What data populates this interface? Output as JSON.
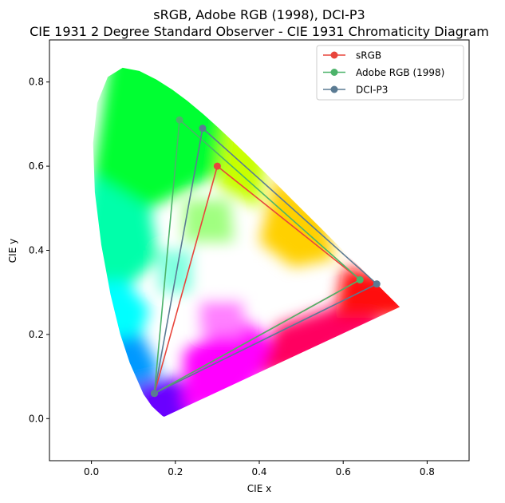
{
  "chart_data": {
    "type": "line",
    "title": "sRGB, Adobe RGB (1998), DCI-P3",
    "subtitle": "CIE 1931 2 Degree Standard Observer - CIE 1931 Chromaticity Diagram",
    "xlabel": "CIE x",
    "ylabel": "CIE y",
    "xlim": [
      -0.1,
      0.9
    ],
    "ylim": [
      -0.1,
      0.9
    ],
    "x_ticks": [
      0.0,
      0.2,
      0.4,
      0.6,
      0.8
    ],
    "y_ticks": [
      0.0,
      0.2,
      0.4,
      0.6,
      0.8
    ],
    "x_tick_labels": [
      "0.0",
      "0.2",
      "0.4",
      "0.6",
      "0.8"
    ],
    "y_tick_labels": [
      "0.0",
      "0.2",
      "0.4",
      "0.6",
      "0.8"
    ],
    "grid": false,
    "legend_position": "top-right",
    "series": [
      {
        "name": "sRGB",
        "color": "#e8453c",
        "points": [
          [
            0.64,
            0.33
          ],
          [
            0.3,
            0.6
          ],
          [
            0.15,
            0.06
          ],
          [
            0.64,
            0.33
          ]
        ]
      },
      {
        "name": "Adobe RGB (1998)",
        "color": "#4cb36a",
        "points": [
          [
            0.64,
            0.33
          ],
          [
            0.21,
            0.71
          ],
          [
            0.15,
            0.06
          ],
          [
            0.64,
            0.33
          ]
        ]
      },
      {
        "name": "DCI-P3",
        "color": "#5b7b93",
        "points": [
          [
            0.68,
            0.32
          ],
          [
            0.265,
            0.69
          ],
          [
            0.15,
            0.06
          ],
          [
            0.68,
            0.32
          ]
        ]
      }
    ],
    "spectral_locus": [
      [
        0.1741,
        0.005
      ],
      [
        0.1738,
        0.0049
      ],
      [
        0.1736,
        0.0049
      ],
      [
        0.1733,
        0.0048
      ],
      [
        0.1726,
        0.0048
      ],
      [
        0.1714,
        0.0051
      ],
      [
        0.1689,
        0.0069
      ],
      [
        0.1644,
        0.0109
      ],
      [
        0.1566,
        0.0177
      ],
      [
        0.144,
        0.0297
      ],
      [
        0.1241,
        0.0578
      ],
      [
        0.0913,
        0.1327
      ],
      [
        0.0687,
        0.2007
      ],
      [
        0.0454,
        0.295
      ],
      [
        0.0235,
        0.4127
      ],
      [
        0.0082,
        0.5384
      ],
      [
        0.0039,
        0.6548
      ],
      [
        0.0139,
        0.7502
      ],
      [
        0.0389,
        0.812
      ],
      [
        0.0743,
        0.8338
      ],
      [
        0.1142,
        0.8262
      ],
      [
        0.1547,
        0.8059
      ],
      [
        0.1929,
        0.7816
      ],
      [
        0.2296,
        0.7543
      ],
      [
        0.2658,
        0.7243
      ],
      [
        0.3016,
        0.6923
      ],
      [
        0.3373,
        0.6589
      ],
      [
        0.3731,
        0.6245
      ],
      [
        0.4087,
        0.5896
      ],
      [
        0.4441,
        0.5547
      ],
      [
        0.4788,
        0.5202
      ],
      [
        0.5125,
        0.4866
      ],
      [
        0.5448,
        0.4544
      ],
      [
        0.5752,
        0.4242
      ],
      [
        0.6029,
        0.3965
      ],
      [
        0.627,
        0.3725
      ],
      [
        0.6482,
        0.3514
      ],
      [
        0.6658,
        0.334
      ],
      [
        0.6801,
        0.3197
      ],
      [
        0.6915,
        0.3083
      ],
      [
        0.7006,
        0.2993
      ],
      [
        0.7079,
        0.292
      ],
      [
        0.714,
        0.2859
      ],
      [
        0.719,
        0.2809
      ],
      [
        0.723,
        0.277
      ],
      [
        0.726,
        0.274
      ],
      [
        0.7283,
        0.2717
      ],
      [
        0.73,
        0.27
      ],
      [
        0.7311,
        0.2689
      ],
      [
        0.732,
        0.268
      ],
      [
        0.7327,
        0.2673
      ],
      [
        0.7334,
        0.2666
      ],
      [
        0.734,
        0.266
      ],
      [
        0.7344,
        0.2656
      ],
      [
        0.7346,
        0.2654
      ],
      [
        0.7347,
        0.2653
      ]
    ]
  }
}
